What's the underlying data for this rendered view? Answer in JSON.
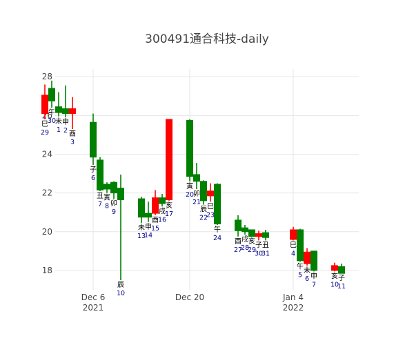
{
  "chart_data": {
    "type": "candlestick",
    "title": "300491通合科技-daily",
    "xlabel": "",
    "ylabel": "",
    "ylim": [
      17.0,
      28.4
    ],
    "y_ticks": [
      18,
      20,
      22,
      24,
      26,
      28
    ],
    "x_range": [
      "2021-11-30 12:00",
      "2022-01-13 12:00"
    ],
    "x_ticks": [
      {
        "date": "2021-12-06",
        "label": "Dec 6",
        "sub": "2021"
      },
      {
        "date": "2021-12-20",
        "label": "Dec 20",
        "sub": ""
      },
      {
        "date": "2022-01-04",
        "label": "Jan 4",
        "sub": "2022"
      }
    ],
    "grid": true,
    "colors": {
      "up": "#ff0000",
      "down": "#008000"
    },
    "candles": [
      {
        "date": "2021-11-29",
        "open": 26.1,
        "high": 27.6,
        "low": 25.8,
        "close": 27.05,
        "zhi": "巳",
        "day": "29"
      },
      {
        "date": "2021-11-30",
        "open": 27.4,
        "high": 27.8,
        "low": 26.4,
        "close": 26.75,
        "zhi": "午",
        "day": "30"
      },
      {
        "date": "2021-12-01",
        "open": 26.45,
        "high": 27.2,
        "low": 25.95,
        "close": 26.15,
        "zhi": "未",
        "day": "1"
      },
      {
        "date": "2021-12-02",
        "open": 26.35,
        "high": 27.55,
        "low": 25.9,
        "close": 26.1,
        "zhi": "申",
        "day": "2"
      },
      {
        "date": "2021-12-03",
        "open": 26.1,
        "high": 26.95,
        "low": 25.3,
        "close": 26.35,
        "zhi": "酉",
        "day": "3"
      },
      {
        "date": "2021-12-06",
        "open": 25.65,
        "high": 26.1,
        "low": 23.45,
        "close": 23.85,
        "zhi": "子",
        "day": "6"
      },
      {
        "date": "2021-12-07",
        "open": 23.7,
        "high": 23.85,
        "low": 22.1,
        "close": 22.15,
        "zhi": "丑",
        "day": "7"
      },
      {
        "date": "2021-12-08",
        "open": 22.45,
        "high": 22.55,
        "low": 22.0,
        "close": 22.2,
        "zhi": "寅",
        "day": "8"
      },
      {
        "date": "2021-12-09",
        "open": 22.55,
        "high": 22.6,
        "low": 21.7,
        "close": 22.0,
        "zhi": "卯",
        "day": "9"
      },
      {
        "date": "2021-12-10",
        "open": 22.25,
        "high": 22.95,
        "low": 17.5,
        "close": 21.65,
        "zhi": "辰",
        "day": "10"
      },
      {
        "date": "2021-12-13",
        "open": 21.7,
        "high": 21.8,
        "low": 20.45,
        "close": 20.75,
        "zhi": "未",
        "day": "13"
      },
      {
        "date": "2021-12-14",
        "open": 20.95,
        "high": 21.55,
        "low": 20.5,
        "close": 20.75,
        "zhi": "申",
        "day": "14"
      },
      {
        "date": "2021-12-15",
        "open": 20.95,
        "high": 22.15,
        "low": 20.85,
        "close": 21.75,
        "zhi": "酉",
        "day": "15"
      },
      {
        "date": "2021-12-16",
        "open": 21.75,
        "high": 21.95,
        "low": 21.3,
        "close": 21.45,
        "zhi": "戌",
        "day": "16"
      },
      {
        "date": "2021-12-17",
        "open": 21.65,
        "high": 25.8,
        "low": 21.6,
        "close": 25.8,
        "zhi": "亥",
        "day": "17"
      },
      {
        "date": "2021-12-20",
        "open": 25.75,
        "high": 25.8,
        "low": 22.6,
        "close": 22.85,
        "zhi": "寅",
        "day": "20"
      },
      {
        "date": "2021-12-21",
        "open": 22.95,
        "high": 23.55,
        "low": 22.2,
        "close": 22.6,
        "zhi": "卯",
        "day": "21"
      },
      {
        "date": "2021-12-22",
        "open": 22.6,
        "high": 22.65,
        "low": 21.4,
        "close": 21.6,
        "zhi": "辰",
        "day": "22"
      },
      {
        "date": "2021-12-23",
        "open": 21.85,
        "high": 22.5,
        "low": 21.55,
        "close": 22.1,
        "zhi": "巳",
        "day": "23"
      },
      {
        "date": "2021-12-24",
        "open": 22.45,
        "high": 22.5,
        "low": 20.35,
        "close": 20.4,
        "zhi": "午",
        "day": "24"
      },
      {
        "date": "2021-12-27",
        "open": 20.6,
        "high": 20.85,
        "low": 19.75,
        "close": 20.05,
        "zhi": "酉",
        "day": "27"
      },
      {
        "date": "2021-12-28",
        "open": 20.2,
        "high": 20.35,
        "low": 19.85,
        "close": 20.0,
        "zhi": "戌",
        "day": "28"
      },
      {
        "date": "2021-12-29",
        "open": 20.1,
        "high": 20.1,
        "low": 19.75,
        "close": 19.75,
        "zhi": "亥",
        "day": "29"
      },
      {
        "date": "2021-12-30",
        "open": 19.75,
        "high": 20.05,
        "low": 19.55,
        "close": 19.9,
        "zhi": "子",
        "day": "30"
      },
      {
        "date": "2021-12-31",
        "open": 19.95,
        "high": 20.1,
        "low": 19.55,
        "close": 19.7,
        "zhi": "丑",
        "day": "31"
      },
      {
        "date": "2022-01-04",
        "open": 19.6,
        "high": 20.25,
        "low": 19.55,
        "close": 20.1,
        "zhi": "巳",
        "day": "4"
      },
      {
        "date": "2022-01-05",
        "open": 20.1,
        "high": 20.15,
        "low": 18.45,
        "close": 18.5,
        "zhi": "午",
        "day": "5"
      },
      {
        "date": "2022-01-06",
        "open": 18.35,
        "high": 19.15,
        "low": 18.25,
        "close": 18.95,
        "zhi": "未",
        "day": "6"
      },
      {
        "date": "2022-01-07",
        "open": 19.0,
        "high": 19.0,
        "low": 17.95,
        "close": 18.0,
        "zhi": "申",
        "day": "7"
      },
      {
        "date": "2022-01-10",
        "open": 18.0,
        "high": 18.4,
        "low": 17.95,
        "close": 18.25,
        "zhi": "亥",
        "day": "10"
      },
      {
        "date": "2022-01-11",
        "open": 18.2,
        "high": 18.35,
        "low": 17.85,
        "close": 17.85,
        "zhi": "子",
        "day": "11"
      }
    ]
  }
}
